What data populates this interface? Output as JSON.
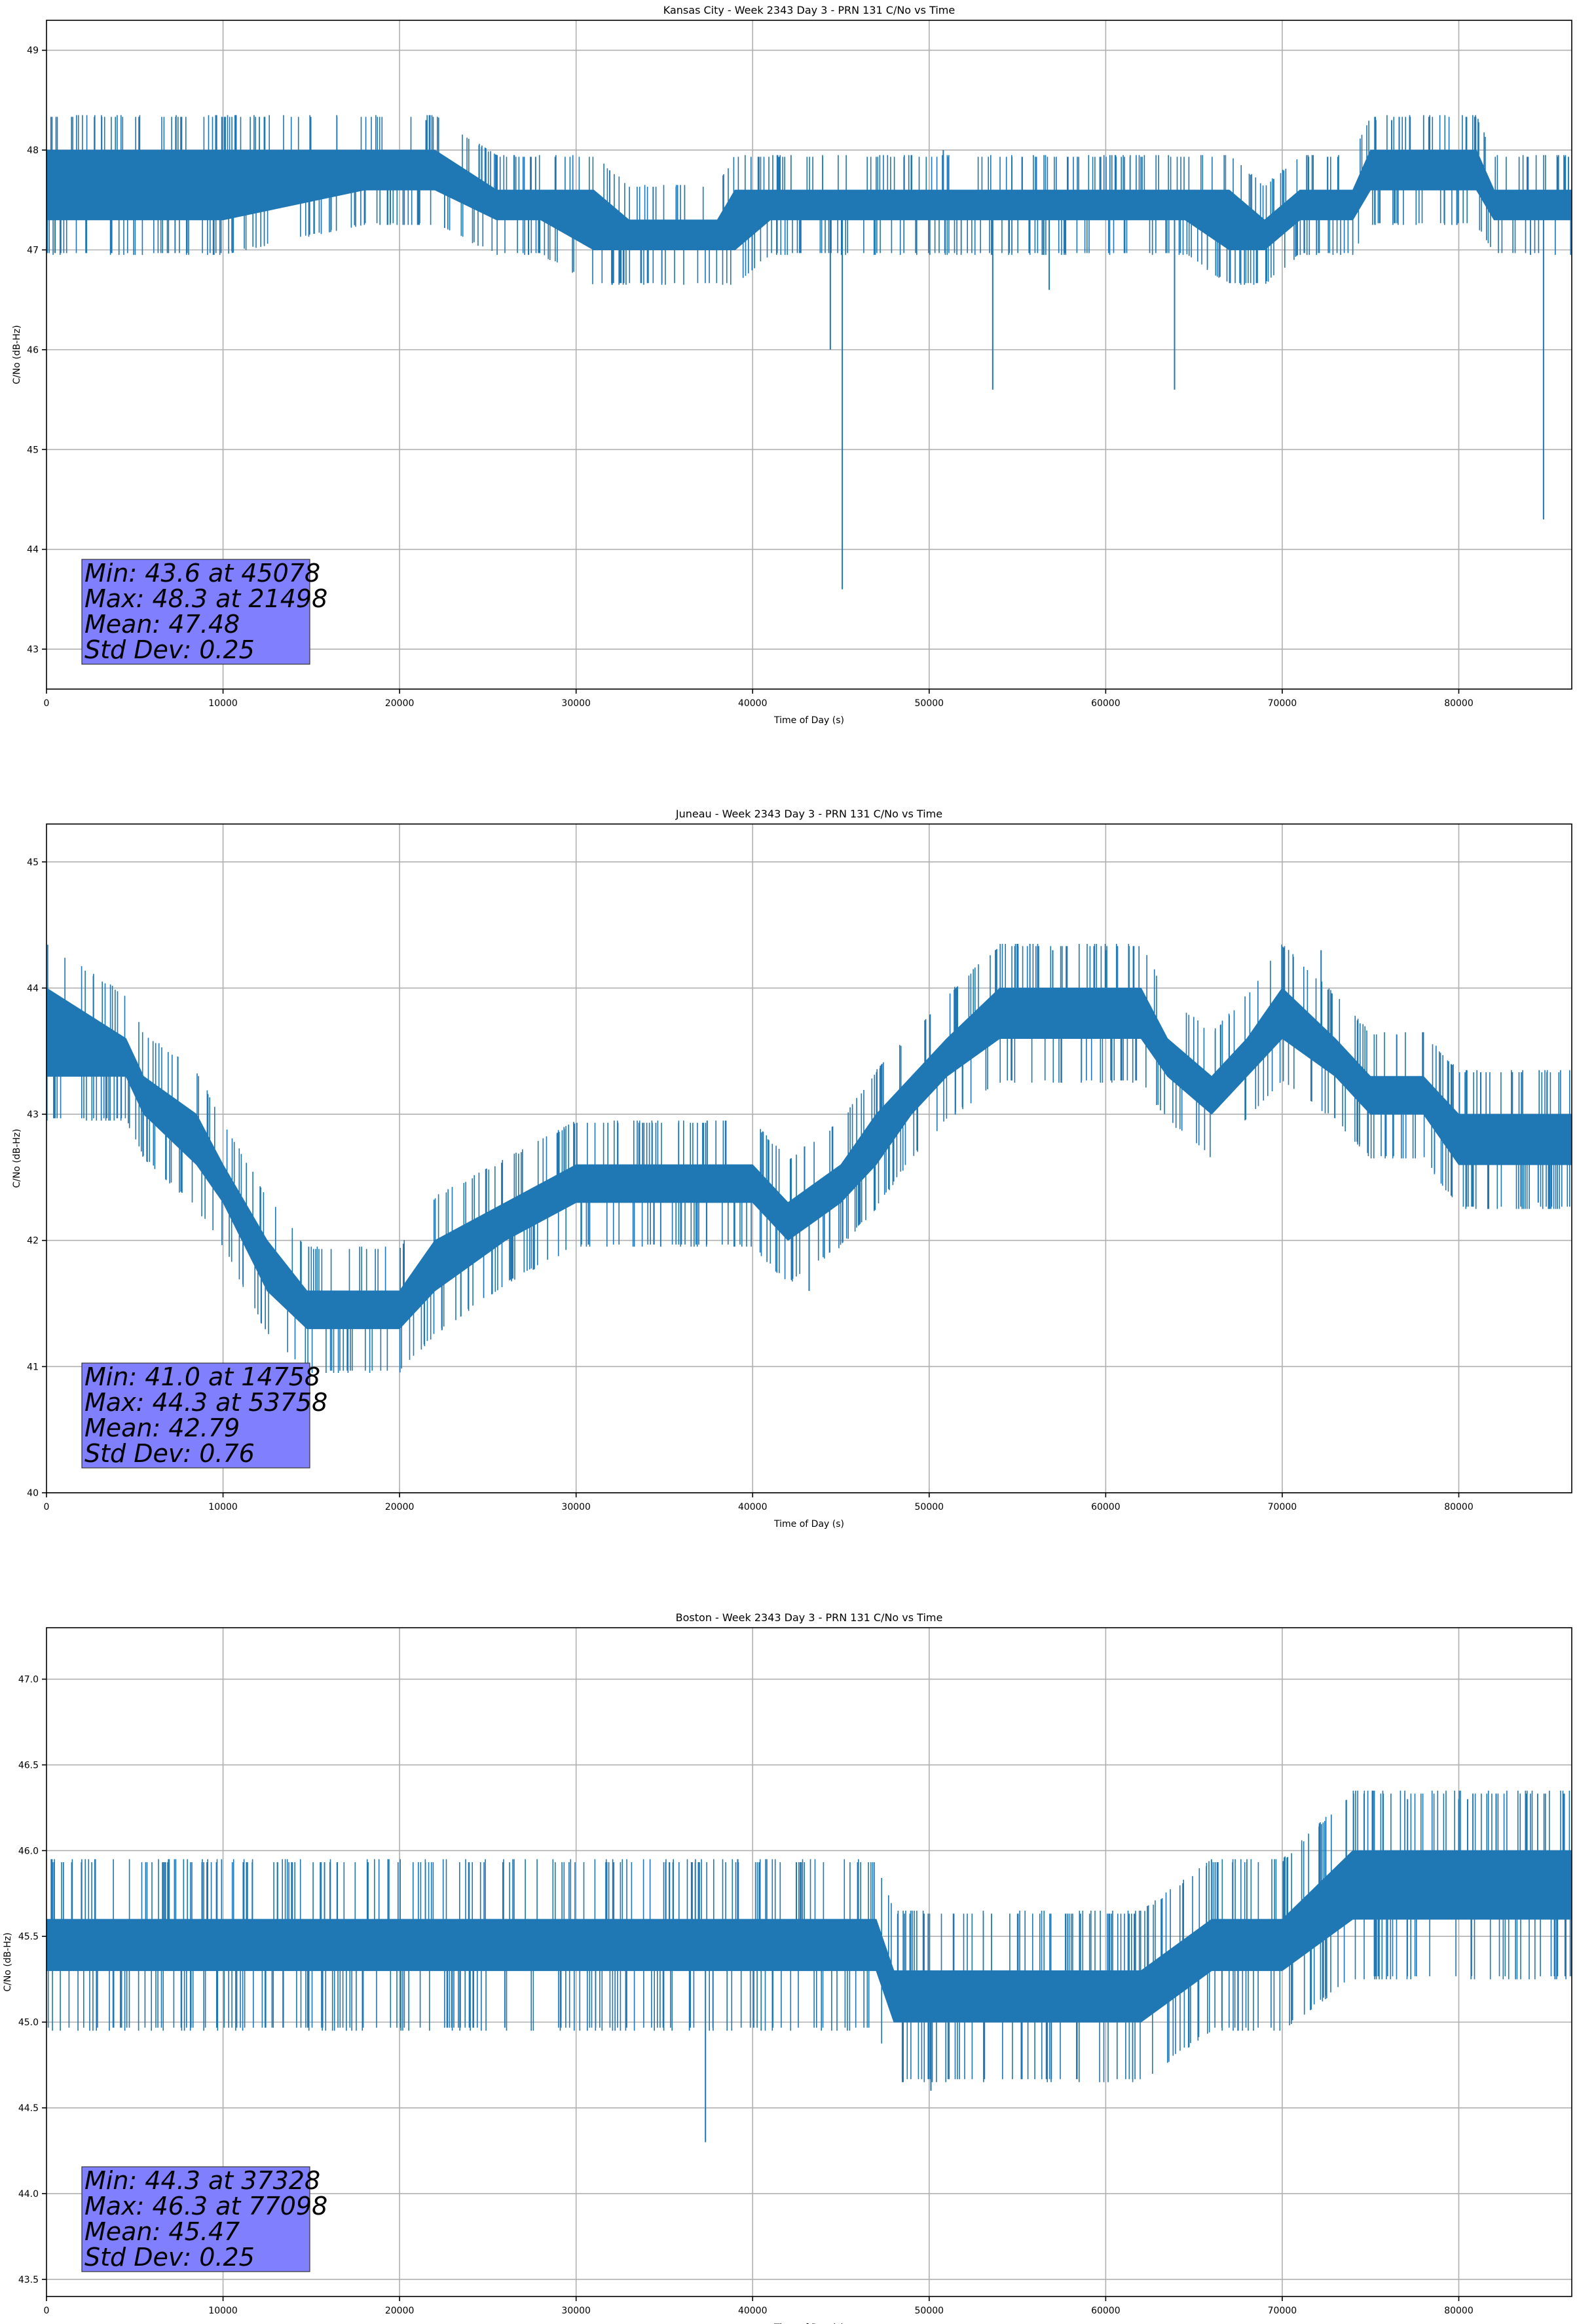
{
  "chart_data": [
    {
      "type": "line",
      "title": "Kansas City - Week 2343 Day 3 - PRN 131 C/No vs Time",
      "xlabel": "Time of Day (s)",
      "ylabel": "C/No (dB-Hz)",
      "xlim": [
        0,
        86400
      ],
      "ylim": [
        42.6,
        49.3
      ],
      "xticks": [
        0,
        10000,
        20000,
        30000,
        40000,
        50000,
        60000,
        70000,
        80000
      ],
      "yticks": [
        43,
        44,
        45,
        46,
        47,
        48,
        49
      ],
      "grid": true,
      "series_color": "#1f77b4",
      "band": [
        {
          "x": 0,
          "lo": 47.3,
          "hi": 48.0
        },
        {
          "x": 2500,
          "lo": 47.3,
          "hi": 48.0
        },
        {
          "x": 10000,
          "lo": 47.3,
          "hi": 48.0
        },
        {
          "x": 18000,
          "lo": 47.6,
          "hi": 48.0
        },
        {
          "x": 22000,
          "lo": 47.6,
          "hi": 48.0
        },
        {
          "x": 25500,
          "lo": 47.3,
          "hi": 47.6
        },
        {
          "x": 28000,
          "lo": 47.3,
          "hi": 47.6
        },
        {
          "x": 31000,
          "lo": 47.0,
          "hi": 47.6
        },
        {
          "x": 33000,
          "lo": 47.0,
          "hi": 47.3
        },
        {
          "x": 38000,
          "lo": 47.0,
          "hi": 47.3
        },
        {
          "x": 39000,
          "lo": 47.0,
          "hi": 47.6
        },
        {
          "x": 41000,
          "lo": 47.3,
          "hi": 47.6
        },
        {
          "x": 50000,
          "lo": 47.3,
          "hi": 47.6
        },
        {
          "x": 55000,
          "lo": 47.3,
          "hi": 47.6
        },
        {
          "x": 60000,
          "lo": 47.3,
          "hi": 47.6
        },
        {
          "x": 64500,
          "lo": 47.3,
          "hi": 47.6
        },
        {
          "x": 67000,
          "lo": 47.0,
          "hi": 47.6
        },
        {
          "x": 69000,
          "lo": 47.0,
          "hi": 47.3
        },
        {
          "x": 71000,
          "lo": 47.3,
          "hi": 47.6
        },
        {
          "x": 74000,
          "lo": 47.3,
          "hi": 47.6
        },
        {
          "x": 75000,
          "lo": 47.6,
          "hi": 48.0
        },
        {
          "x": 81000,
          "lo": 47.6,
          "hi": 48.0
        },
        {
          "x": 82000,
          "lo": 47.3,
          "hi": 47.6
        },
        {
          "x": 86400,
          "lo": 47.3,
          "hi": 47.6
        }
      ],
      "spikes": [
        {
          "x": 21498,
          "y": 48.3
        },
        {
          "x": 50800,
          "y": 48.0
        },
        {
          "x": 75300,
          "y": 48.3
        },
        {
          "x": 76200,
          "y": 48.3
        },
        {
          "x": 44400,
          "y": 46.0
        },
        {
          "x": 45078,
          "y": 43.6
        },
        {
          "x": 53600,
          "y": 45.6
        },
        {
          "x": 56800,
          "y": 46.6
        },
        {
          "x": 63900,
          "y": 45.6
        },
        {
          "x": 84800,
          "y": 44.3
        }
      ],
      "stats_box": {
        "line1": "Min: 43.6 at 45078",
        "line2": "Max: 48.3 at 21498",
        "line3": "Mean: 47.48",
        "line4": "Std Dev: 0.25",
        "fill": "#8080ff"
      }
    },
    {
      "type": "line",
      "title": "Juneau - Week 2343 Day 3 - PRN 131 C/No vs Time",
      "xlabel": "Time of Day (s)",
      "ylabel": "C/No (dB-Hz)",
      "xlim": [
        0,
        86400
      ],
      "ylim": [
        40.0,
        45.3
      ],
      "xticks": [
        0,
        10000,
        20000,
        30000,
        40000,
        50000,
        60000,
        70000,
        80000
      ],
      "yticks": [
        40,
        41,
        42,
        43,
        44,
        45
      ],
      "grid": true,
      "series_color": "#1f77b4",
      "band": [
        {
          "x": 0,
          "lo": 43.3,
          "hi": 44.0
        },
        {
          "x": 4500,
          "lo": 43.3,
          "hi": 43.6
        },
        {
          "x": 5500,
          "lo": 43.0,
          "hi": 43.3
        },
        {
          "x": 8500,
          "lo": 42.6,
          "hi": 43.0
        },
        {
          "x": 10000,
          "lo": 42.3,
          "hi": 42.6
        },
        {
          "x": 12500,
          "lo": 41.6,
          "hi": 42.0
        },
        {
          "x": 14758,
          "lo": 41.3,
          "hi": 41.6
        },
        {
          "x": 17000,
          "lo": 41.3,
          "hi": 41.6
        },
        {
          "x": 20000,
          "lo": 41.3,
          "hi": 41.6
        },
        {
          "x": 22000,
          "lo": 41.6,
          "hi": 42.0
        },
        {
          "x": 26000,
          "lo": 42.0,
          "hi": 42.3
        },
        {
          "x": 30000,
          "lo": 42.3,
          "hi": 42.6
        },
        {
          "x": 35000,
          "lo": 42.3,
          "hi": 42.6
        },
        {
          "x": 40000,
          "lo": 42.3,
          "hi": 42.6
        },
        {
          "x": 42000,
          "lo": 42.0,
          "hi": 42.3
        },
        {
          "x": 45000,
          "lo": 42.3,
          "hi": 42.6
        },
        {
          "x": 47000,
          "lo": 42.6,
          "hi": 43.0
        },
        {
          "x": 49000,
          "lo": 43.0,
          "hi": 43.3
        },
        {
          "x": 51000,
          "lo": 43.3,
          "hi": 43.6
        },
        {
          "x": 54000,
          "lo": 43.6,
          "hi": 44.0
        },
        {
          "x": 58000,
          "lo": 43.6,
          "hi": 44.0
        },
        {
          "x": 62000,
          "lo": 43.6,
          "hi": 44.0
        },
        {
          "x": 63500,
          "lo": 43.3,
          "hi": 43.6
        },
        {
          "x": 66000,
          "lo": 43.0,
          "hi": 43.3
        },
        {
          "x": 68000,
          "lo": 43.3,
          "hi": 43.6
        },
        {
          "x": 70000,
          "lo": 43.6,
          "hi": 44.0
        },
        {
          "x": 73000,
          "lo": 43.3,
          "hi": 43.6
        },
        {
          "x": 75000,
          "lo": 43.0,
          "hi": 43.3
        },
        {
          "x": 78000,
          "lo": 43.0,
          "hi": 43.3
        },
        {
          "x": 80000,
          "lo": 42.6,
          "hi": 43.0
        },
        {
          "x": 86400,
          "lo": 42.6,
          "hi": 43.0
        }
      ],
      "spikes": [
        {
          "x": 53758,
          "y": 44.3
        },
        {
          "x": 57000,
          "y": 44.3
        },
        {
          "x": 60000,
          "y": 44.3
        },
        {
          "x": 72200,
          "y": 44.3
        },
        {
          "x": 43200,
          "y": 41.6
        },
        {
          "x": 84500,
          "y": 42.3
        }
      ],
      "stats_box": {
        "line1": "Min: 41.0 at 14758",
        "line2": "Max: 44.3 at 53758",
        "line3": "Mean: 42.79",
        "line4": "Std Dev: 0.76",
        "fill": "#8080ff"
      }
    },
    {
      "type": "line",
      "title": "Boston - Week 2343 Day 3 - PRN 131 C/No vs Time",
      "xlabel": "Time of Day (s)",
      "ylabel": "C/No (dB-Hz)",
      "xlim": [
        0,
        86400
      ],
      "ylim": [
        43.4,
        47.3
      ],
      "xticks": [
        0,
        10000,
        20000,
        30000,
        40000,
        50000,
        60000,
        70000,
        80000
      ],
      "yticks": [
        43.5,
        44.0,
        44.5,
        45.0,
        45.5,
        46.0,
        46.5,
        47.0
      ],
      "yticklabels": [
        "43.5",
        "44.0",
        "44.5",
        "45.0",
        "45.5",
        "46.0",
        "46.5",
        "47.0"
      ],
      "grid": true,
      "series_color": "#1f77b4",
      "band": [
        {
          "x": 0,
          "lo": 45.3,
          "hi": 45.6
        },
        {
          "x": 10000,
          "lo": 45.3,
          "hi": 45.6
        },
        {
          "x": 20000,
          "lo": 45.3,
          "hi": 45.6
        },
        {
          "x": 30000,
          "lo": 45.3,
          "hi": 45.6
        },
        {
          "x": 40000,
          "lo": 45.3,
          "hi": 45.6
        },
        {
          "x": 47000,
          "lo": 45.3,
          "hi": 45.6
        },
        {
          "x": 48000,
          "lo": 45.0,
          "hi": 45.3
        },
        {
          "x": 55000,
          "lo": 45.0,
          "hi": 45.3
        },
        {
          "x": 62000,
          "lo": 45.0,
          "hi": 45.3
        },
        {
          "x": 66000,
          "lo": 45.3,
          "hi": 45.6
        },
        {
          "x": 70000,
          "lo": 45.3,
          "hi": 45.6
        },
        {
          "x": 74000,
          "lo": 45.6,
          "hi": 46.0
        },
        {
          "x": 80000,
          "lo": 45.6,
          "hi": 46.0
        },
        {
          "x": 86400,
          "lo": 45.6,
          "hi": 46.0
        }
      ],
      "spikes": [
        {
          "x": 37328,
          "y": 44.3
        },
        {
          "x": 50100,
          "y": 44.6
        },
        {
          "x": 77098,
          "y": 46.3
        },
        {
          "x": 80000,
          "y": 46.3
        },
        {
          "x": 80500,
          "y": 46.3
        }
      ],
      "stats_box": {
        "line1": "Min: 44.3 at 37328",
        "line2": "Max: 46.3 at 77098",
        "line3": "Mean: 45.47",
        "line4": "Std Dev: 0.25",
        "fill": "#8080ff"
      }
    }
  ]
}
